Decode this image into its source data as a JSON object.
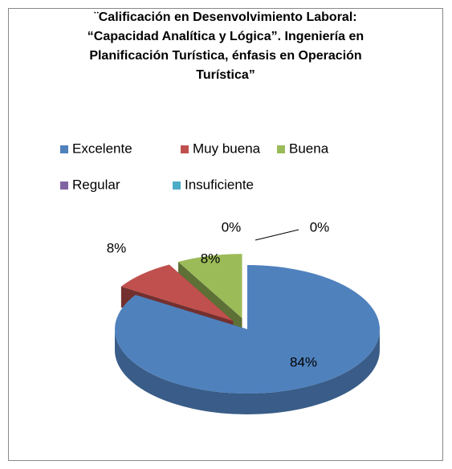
{
  "chart_data": {
    "type": "pie3d",
    "title": "¨Calificación en Desenvolvimiento Laboral: “Capacidad Analítica y Lógica”. Ingeniería en Planificación Turística, énfasis en Operación Turística”",
    "categories": [
      "Excelente",
      "Muy buena",
      "Buena",
      "Regular",
      "Insuficiente"
    ],
    "values": [
      84,
      8,
      8,
      0,
      0
    ],
    "value_labels": [
      "84%",
      "8%",
      "8%",
      "0%",
      "0%"
    ],
    "colors": [
      "#4f81bd",
      "#c0504d",
      "#9bbb59",
      "#8064a2",
      "#4bacc6"
    ],
    "legend": "top"
  }
}
